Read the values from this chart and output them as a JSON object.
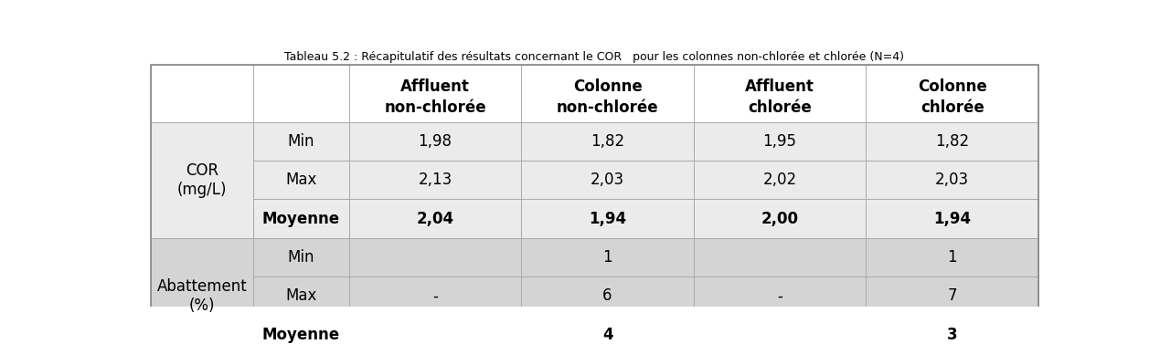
{
  "title": "Tableau 5.2 : Récapitulatif des résultats concernant le COR   pour les colonnes non-chlorée et chlorée (N=4)",
  "col_headers": [
    [
      "Affluent",
      "non-chlorée"
    ],
    [
      "Colonne",
      "non-chlorée"
    ],
    [
      "Affluent",
      "chlorée"
    ],
    [
      "Colonne",
      "chlorée"
    ]
  ],
  "row_group1_label": "COR\n(mg/L)",
  "row_group1_subrows": [
    "Min",
    "Max",
    "Moyenne"
  ],
  "row_group1_subrow_bold": [
    false,
    false,
    true
  ],
  "row_group1_data": [
    [
      "1,98",
      "2,13",
      "2,04"
    ],
    [
      "1,82",
      "2,03",
      "1,94"
    ],
    [
      "1,95",
      "2,02",
      "2,00"
    ],
    [
      "1,82",
      "2,03",
      "1,94"
    ]
  ],
  "row_group1_data_bold": [
    false,
    false,
    true
  ],
  "row_group2_label": "Abattement\n(%)",
  "row_group2_subrows": [
    "Min",
    "Max",
    "Moyenne"
  ],
  "row_group2_subrow_bold": [
    false,
    false,
    true
  ],
  "row_group2_data": [
    [
      "",
      "-",
      ""
    ],
    [
      "1",
      "6",
      "4"
    ],
    [
      "",
      "-",
      ""
    ],
    [
      "1",
      "7",
      "3"
    ]
  ],
  "row_group2_data_bold": [
    false,
    false,
    true
  ],
  "bg_header": "#ffffff",
  "bg_group1": "#ebebeb",
  "bg_group2": "#d4d4d4",
  "bg_group2_alt": "#cccccc",
  "text_color": "#000000",
  "border_color": "#aaaaaa",
  "title_fontsize": 9,
  "header_fontsize": 12,
  "cell_fontsize": 12
}
